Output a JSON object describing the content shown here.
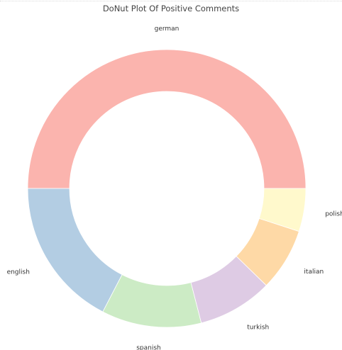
{
  "chart_data": {
    "type": "pie",
    "donut": true,
    "title": "DoNut Plot Of Positive Comments",
    "slices": [
      {
        "label": "german",
        "value": 50.0,
        "color": "#fbb4ae"
      },
      {
        "label": "english",
        "value": 17.4,
        "color": "#b3cde3"
      },
      {
        "label": "spanish",
        "value": 11.6,
        "color": "#ccebc5"
      },
      {
        "label": "turkish",
        "value": 8.7,
        "color": "#decbe4"
      },
      {
        "label": "italian",
        "value": 7.3,
        "color": "#fed9a6"
      },
      {
        "label": "polish",
        "value": 5.0,
        "color": "#fff9cc"
      }
    ]
  }
}
